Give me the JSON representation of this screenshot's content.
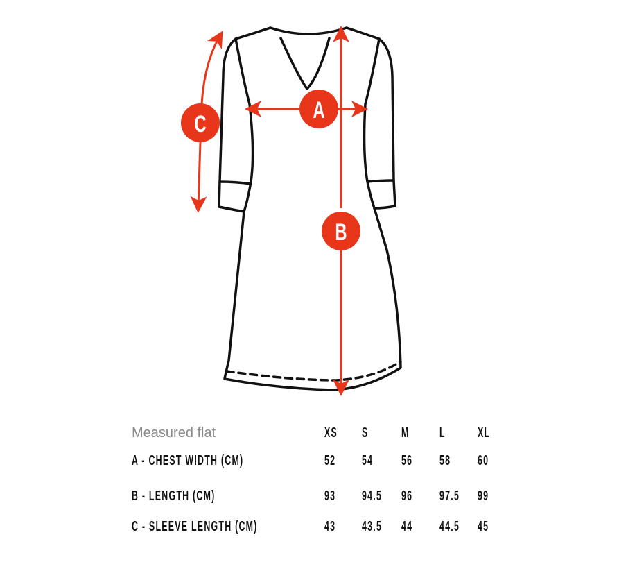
{
  "diagram": {
    "labels": {
      "chest": "A",
      "length": "B",
      "sleeve": "C"
    },
    "accent_color": "#e8361b",
    "outline_color": "#111111"
  },
  "table": {
    "header_label": "Measured flat",
    "sizes": [
      "XS",
      "S",
      "M",
      "L",
      "XL"
    ],
    "rows": [
      {
        "label": "A - CHEST WIDTH (CM)",
        "values": [
          "52",
          "54",
          "56",
          "58",
          "60"
        ]
      },
      {
        "label": "B - LENGTH (CM)",
        "values": [
          "93",
          "94.5",
          "96",
          "97.5",
          "99"
        ]
      },
      {
        "label": "C - SLEEVE LENGTH (CM)",
        "values": [
          "43",
          "43.5",
          "44",
          "44.5",
          "45"
        ]
      }
    ]
  }
}
